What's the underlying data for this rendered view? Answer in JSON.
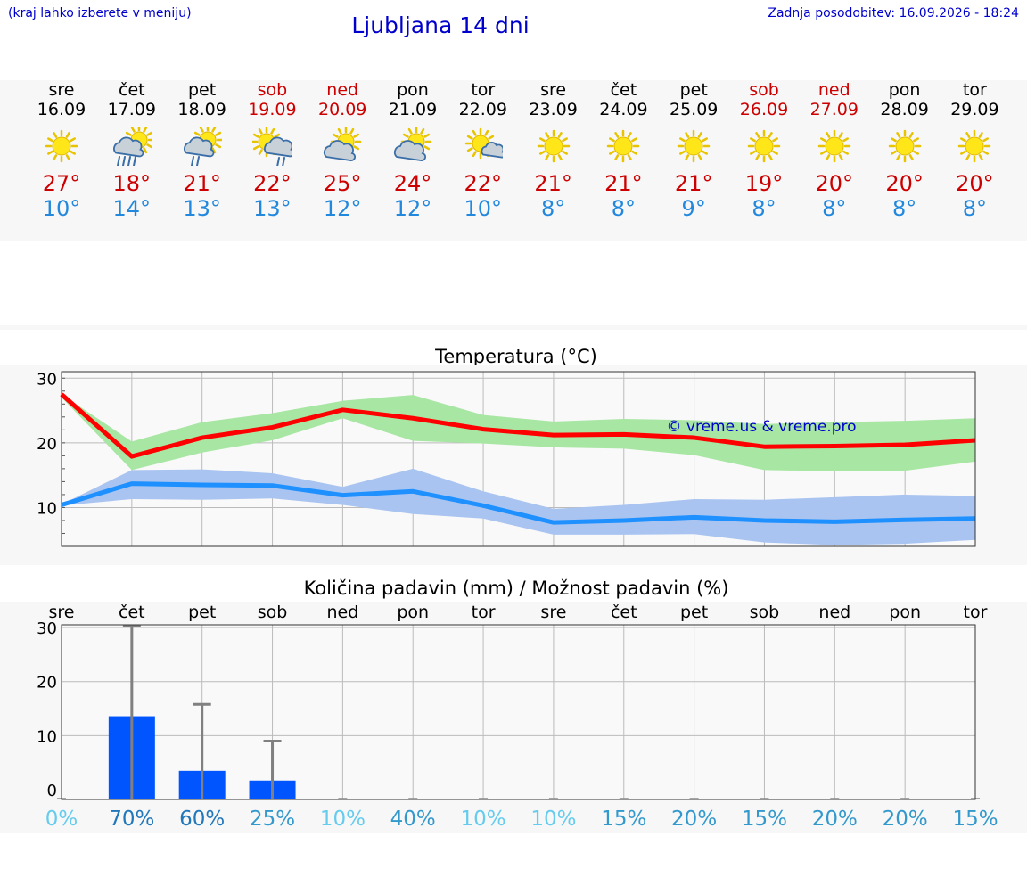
{
  "header": {
    "note": "(kraj lahko izberete v meniju)",
    "title": "Ljubljana 14 dni",
    "updated": "Zadnja posodobitev: 16.09.2026 - 18:24"
  },
  "days": [
    {
      "name": "sre",
      "date": "16.09",
      "weekend": false,
      "icon": "sun-icon",
      "tmax": "27°",
      "tmin": "10°"
    },
    {
      "name": "čet",
      "date": "17.09",
      "weekend": false,
      "icon": "sun-cloud-heavy-rain-icon",
      "tmax": "18°",
      "tmin": "14°"
    },
    {
      "name": "pet",
      "date": "18.09",
      "weekend": false,
      "icon": "sun-cloud-rain-icon",
      "tmax": "21°",
      "tmin": "13°"
    },
    {
      "name": "sob",
      "date": "19.09",
      "weekend": true,
      "icon": "sun-cloud-light-rain-icon",
      "tmax": "22°",
      "tmin": "13°"
    },
    {
      "name": "ned",
      "date": "20.09",
      "weekend": true,
      "icon": "sun-cloud-icon",
      "tmax": "25°",
      "tmin": "12°"
    },
    {
      "name": "pon",
      "date": "21.09",
      "weekend": false,
      "icon": "sun-cloud-icon",
      "tmax": "24°",
      "tmin": "12°"
    },
    {
      "name": "tor",
      "date": "22.09",
      "weekend": false,
      "icon": "sun-small-cloud-icon",
      "tmax": "22°",
      "tmin": "10°"
    },
    {
      "name": "sre",
      "date": "23.09",
      "weekend": false,
      "icon": "sun-icon",
      "tmax": "21°",
      "tmin": "8°"
    },
    {
      "name": "čet",
      "date": "24.09",
      "weekend": false,
      "icon": "sun-icon",
      "tmax": "21°",
      "tmin": "8°"
    },
    {
      "name": "pet",
      "date": "25.09",
      "weekend": false,
      "icon": "sun-icon",
      "tmax": "21°",
      "tmin": "9°"
    },
    {
      "name": "sob",
      "date": "26.09",
      "weekend": true,
      "icon": "sun-icon",
      "tmax": "19°",
      "tmin": "8°"
    },
    {
      "name": "ned",
      "date": "27.09",
      "weekend": true,
      "icon": "sun-icon",
      "tmax": "20°",
      "tmin": "8°"
    },
    {
      "name": "pon",
      "date": "28.09",
      "weekend": false,
      "icon": "sun-icon",
      "tmax": "20°",
      "tmin": "8°"
    },
    {
      "name": "tor",
      "date": "29.09",
      "weekend": false,
      "icon": "sun-icon",
      "tmax": "20°",
      "tmin": "8°"
    }
  ],
  "chart_data": [
    {
      "type": "line",
      "title": "Temperatura (°C)",
      "watermark": "© vreme.us & vreme.pro",
      "x": [
        0,
        1,
        2,
        3,
        4,
        5,
        6,
        7,
        8,
        9,
        10,
        11,
        12,
        13
      ],
      "ylim": [
        4,
        31
      ],
      "yticks": [
        10,
        20,
        30
      ],
      "grid": true,
      "colors": {
        "max_line": "#ff0000",
        "max_band": "#a8e6a3",
        "min_line": "#1e90ff",
        "min_band": "#a9c4f0"
      },
      "series": [
        {
          "key": "max",
          "values": [
            27.5,
            17.9,
            20.8,
            22.4,
            25.1,
            23.8,
            22.1,
            21.2,
            21.3,
            20.8,
            19.4,
            19.5,
            19.7,
            20.4
          ]
        },
        {
          "key": "max_band_upper",
          "values": [
            27.5,
            20.2,
            23.2,
            24.6,
            26.5,
            27.4,
            24.3,
            23.3,
            23.7,
            23.5,
            22.9,
            23.2,
            23.4,
            23.8
          ]
        },
        {
          "key": "max_band_lower",
          "values": [
            27.0,
            15.8,
            18.5,
            20.4,
            23.8,
            20.3,
            19.9,
            19.3,
            19.1,
            18.1,
            15.8,
            15.6,
            15.7,
            17.1
          ]
        },
        {
          "key": "min",
          "values": [
            10.4,
            13.7,
            13.5,
            13.4,
            11.9,
            12.5,
            10.3,
            7.7,
            8.0,
            8.5,
            8.0,
            7.8,
            8.1,
            8.3
          ]
        },
        {
          "key": "min_band_upper",
          "values": [
            10.5,
            15.8,
            15.9,
            15.3,
            13.2,
            16.0,
            12.5,
            9.8,
            10.4,
            11.3,
            11.2,
            11.6,
            12.0,
            11.8
          ]
        },
        {
          "key": "min_band_lower",
          "values": [
            10.3,
            11.3,
            11.2,
            11.4,
            10.4,
            9.0,
            8.3,
            5.8,
            5.8,
            5.9,
            4.6,
            4.2,
            4.4,
            5.0
          ]
        }
      ]
    },
    {
      "type": "bar",
      "title": "Količina padavin (mm) / Možnost padavin (%)",
      "categories": [
        "sre",
        "čet",
        "pet",
        "sob",
        "ned",
        "pon",
        "tor",
        "sre",
        "čet",
        "pet",
        "sob",
        "ned",
        "pon",
        "tor"
      ],
      "ylim": [
        -1.8,
        30.5
      ],
      "yticks": [
        0,
        10,
        20,
        30
      ],
      "grid": true,
      "colors": {
        "bar": "#0055ff",
        "error_bar": "#808080"
      },
      "values": [
        0,
        13.6,
        3.5,
        1.7,
        0,
        0,
        0,
        0,
        0,
        0,
        0,
        0,
        0,
        0
      ],
      "error_upper": [
        0,
        30.3,
        15.8,
        9.0,
        0,
        0,
        0,
        0,
        0,
        0,
        0,
        0,
        0,
        0
      ],
      "probability": [
        "0%",
        "70%",
        "60%",
        "25%",
        "10%",
        "40%",
        "10%",
        "10%",
        "15%",
        "20%",
        "15%",
        "20%",
        "20%",
        "15%"
      ],
      "probability_colors": [
        "#66ccee",
        "#2277bb",
        "#2277bb",
        "#3399cc",
        "#66ccee",
        "#3399cc",
        "#66ccee",
        "#66ccee",
        "#3399cc",
        "#3399cc",
        "#3399cc",
        "#3399cc",
        "#3399cc",
        "#3399cc"
      ]
    }
  ]
}
